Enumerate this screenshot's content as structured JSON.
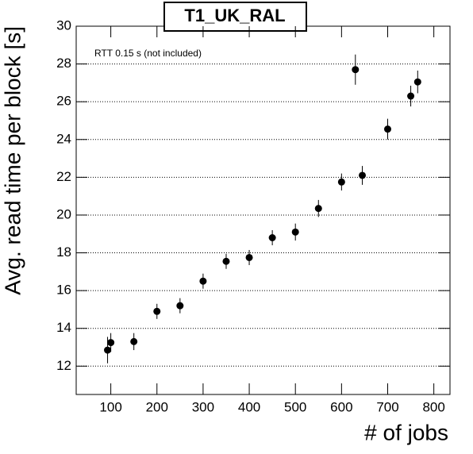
{
  "chart_data": {
    "type": "scatter",
    "title": "T1_UK_RAL",
    "annotation": "RTT 0.15 s (not included)",
    "x_label": "# of jobs",
    "y_label": "Avg. read time per block [s]",
    "series": [
      {
        "name": "T1_UK_RAL",
        "color": "#000000",
        "x": [
          93,
          100,
          150,
          200,
          250,
          300,
          350,
          400,
          450,
          500,
          550,
          600,
          630,
          645,
          700,
          750,
          765
        ],
        "values": [
          12.85,
          13.25,
          13.3,
          14.9,
          15.2,
          16.5,
          17.55,
          17.75,
          18.8,
          19.1,
          20.35,
          21.75,
          27.7,
          22.1,
          24.55,
          26.3,
          27.05
        ],
        "errors": [
          0.7,
          0.5,
          0.45,
          0.4,
          0.4,
          0.4,
          0.4,
          0.4,
          0.4,
          0.45,
          0.45,
          0.45,
          0.8,
          0.5,
          0.55,
          0.55,
          0.6
        ]
      }
    ],
    "xlim": [
      25,
      835
    ],
    "ylim": [
      10.5,
      30
    ],
    "xticks": [
      100,
      200,
      300,
      400,
      500,
      600,
      700,
      800
    ],
    "yticks": [
      12,
      14,
      16,
      18,
      20,
      22,
      24,
      26,
      28,
      30
    ],
    "grid": true
  }
}
